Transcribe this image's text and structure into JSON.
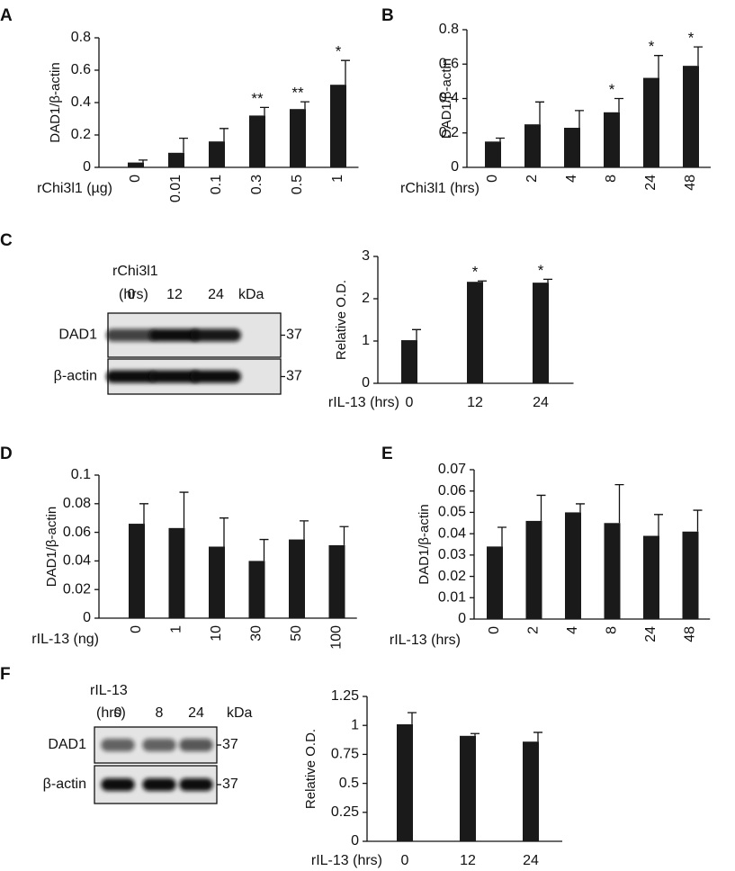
{
  "panel_labels": [
    "A",
    "B",
    "C",
    "D",
    "E",
    "F"
  ],
  "chart_data": [
    {
      "type": "bar",
      "ylabel": "DAD1/β-actin",
      "xlabel": "rChi3l1 (µg)",
      "categories": [
        "0",
        "0.01",
        "0.1",
        "0.3",
        "0.5",
        "1"
      ],
      "values": [
        0.03,
        0.09,
        0.16,
        0.32,
        0.36,
        0.51
      ],
      "errors": [
        0.015,
        0.09,
        0.08,
        0.05,
        0.045,
        0.15
      ],
      "annotations": [
        null,
        null,
        null,
        "**",
        "**",
        "*"
      ],
      "color": "#1a1a1a",
      "ylim": [
        0,
        0.8
      ],
      "yticks": [
        0,
        0.2,
        0.4,
        0.6,
        0.8
      ]
    },
    {
      "type": "bar",
      "ylabel": "DAD1/β-actin",
      "xlabel": "rChi3l1 (hrs)",
      "categories": [
        "0",
        "2",
        "4",
        "8",
        "24",
        "48"
      ],
      "values": [
        0.15,
        0.25,
        0.23,
        0.32,
        0.52,
        0.59
      ],
      "errors": [
        0.02,
        0.13,
        0.1,
        0.08,
        0.13,
        0.11
      ],
      "annotations": [
        null,
        null,
        null,
        "*",
        "*",
        "*"
      ],
      "color": "#1a1a1a",
      "ylim": [
        0,
        0.8
      ],
      "yticks": [
        0,
        0.2,
        0.4,
        0.6,
        0.8
      ]
    },
    {
      "type": "bar",
      "ylabel": "Relative O.D.",
      "xlabel": "rIL-13 (hrs)",
      "categories": [
        "0",
        "12",
        "24"
      ],
      "values": [
        1.02,
        2.4,
        2.38
      ],
      "errors": [
        0.25,
        0.02,
        0.08
      ],
      "annotations": [
        null,
        "*",
        "*"
      ],
      "color": "#1a1a1a",
      "ylim": [
        0,
        3
      ],
      "yticks": [
        0,
        1,
        2,
        3
      ]
    },
    {
      "type": "bar",
      "ylabel": "DAD1/β-actin",
      "xlabel": "rIL-13 (ng)",
      "categories": [
        "0",
        "1",
        "10",
        "30",
        "50",
        "100"
      ],
      "values": [
        0.066,
        0.063,
        0.05,
        0.04,
        0.055,
        0.051
      ],
      "errors": [
        0.014,
        0.025,
        0.02,
        0.015,
        0.013,
        0.013
      ],
      "annotations": [
        null,
        null,
        null,
        null,
        null,
        null
      ],
      "color": "#1a1a1a",
      "ylim": [
        0,
        0.1
      ],
      "yticks": [
        0,
        0.02,
        0.04,
        0.06,
        0.08,
        0.1
      ]
    },
    {
      "type": "bar",
      "ylabel": "DAD1/β-actin",
      "xlabel": "rIL-13 (hrs)",
      "categories": [
        "0",
        "2",
        "4",
        "8",
        "24",
        "48"
      ],
      "values": [
        0.034,
        0.046,
        0.05,
        0.045,
        0.039,
        0.041
      ],
      "errors": [
        0.009,
        0.012,
        0.004,
        0.018,
        0.01,
        0.01
      ],
      "annotations": [
        null,
        null,
        null,
        null,
        null,
        null
      ],
      "color": "#1a1a1a",
      "ylim": [
        0,
        0.07
      ],
      "yticks": [
        0,
        0.01,
        0.02,
        0.03,
        0.04,
        0.05,
        0.06,
        0.07
      ]
    },
    {
      "type": "bar",
      "ylabel": "Relative O.D.",
      "xlabel": "rIL-13 (hrs)",
      "categories": [
        "0",
        "12",
        "24"
      ],
      "values": [
        1.01,
        0.91,
        0.86
      ],
      "errors": [
        0.1,
        0.02,
        0.08
      ],
      "annotations": [
        null,
        null,
        null
      ],
      "color": "#1a1a1a",
      "ylim": [
        0,
        1.25
      ],
      "yticks": [
        0,
        0.25,
        0.5,
        0.75,
        1,
        1.25
      ]
    }
  ],
  "blots": [
    {
      "label_lines": [
        "rChi3l1",
        "(hrs)"
      ],
      "lanes": [
        "0",
        "12",
        "24"
      ],
      "unit": "kDa",
      "rows": [
        {
          "name": "DAD1",
          "size": 37
        },
        {
          "name": "β-actin",
          "size": 37
        }
      ]
    },
    {
      "label_lines": [
        "rIL-13",
        "(hrs)"
      ],
      "lanes": [
        "0",
        "8",
        "24"
      ],
      "unit": "kDa",
      "rows": [
        {
          "name": "DAD1",
          "size": 37
        },
        {
          "name": "β-actin",
          "size": 37
        }
      ]
    }
  ]
}
